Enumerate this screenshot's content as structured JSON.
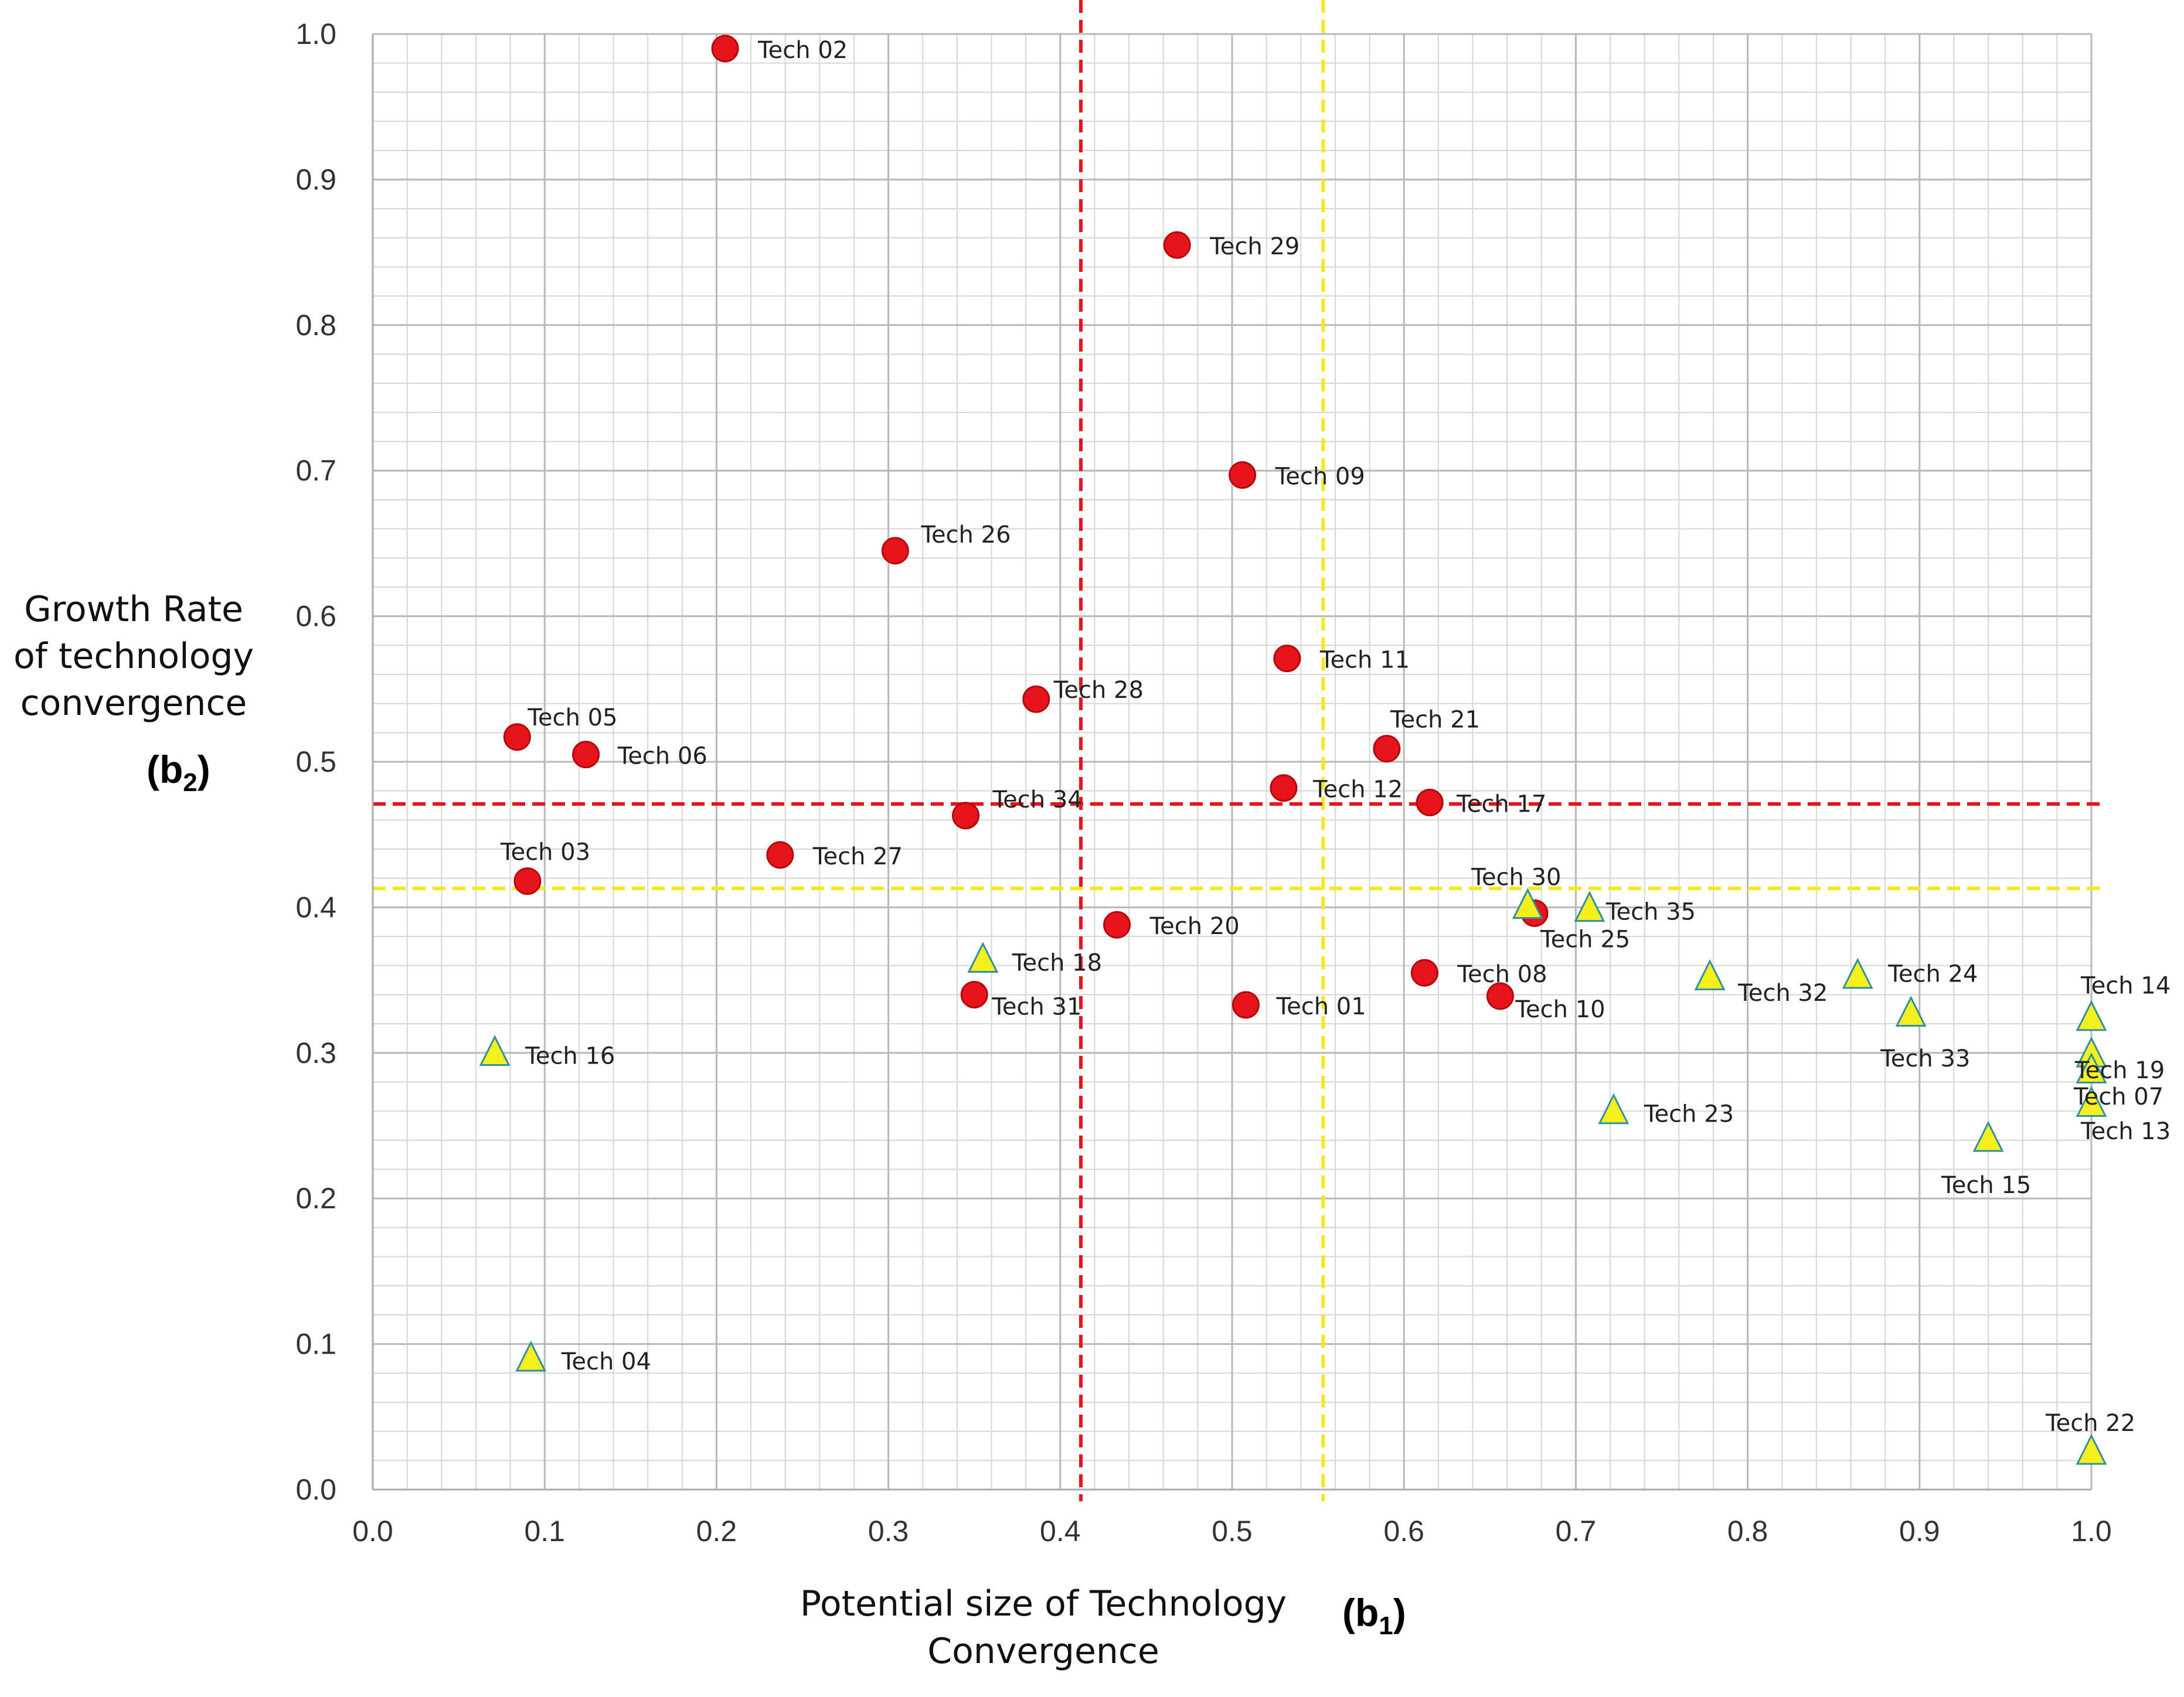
{
  "chart_data": {
    "type": "scatter",
    "title": "",
    "xlabel_lines": [
      "Potential size of  Technology",
      "Convergence"
    ],
    "xlabel_symbol": "(b1)",
    "ylabel_lines": [
      "Growth Rate",
      "of technology",
      "convergence"
    ],
    "ylabel_symbol": "(b2)",
    "xlim": [
      0.0,
      1.0
    ],
    "ylim": [
      0.0,
      1.0
    ],
    "x_ticks": [
      "0.0",
      "0.1",
      "0.2",
      "0.3",
      "0.4",
      "0.5",
      "0.6",
      "0.7",
      "0.8",
      "0.9",
      "1.0"
    ],
    "y_ticks": [
      "0.0",
      "0.1",
      "0.2",
      "0.3",
      "0.4",
      "0.5",
      "0.6",
      "0.7",
      "0.8",
      "0.9",
      "1.0"
    ],
    "grid": true,
    "reference_lines": [
      {
        "orientation": "vertical",
        "value": 0.412,
        "color": "#e8141b"
      },
      {
        "orientation": "vertical",
        "value": 0.553,
        "color": "#f5e81c"
      },
      {
        "orientation": "horizontal",
        "value": 0.471,
        "color": "#e8141b"
      },
      {
        "orientation": "horizontal",
        "value": 0.413,
        "color": "#f5e81c"
      }
    ],
    "series": [
      {
        "name": "circle",
        "marker": "circle",
        "color": "#e8141b",
        "points": [
          {
            "label": "Tech 02",
            "x": 0.205,
            "y": 0.99
          },
          {
            "label": "Tech 29",
            "x": 0.468,
            "y": 0.855
          },
          {
            "label": "Tech 09",
            "x": 0.506,
            "y": 0.697
          },
          {
            "label": "Tech 26",
            "x": 0.304,
            "y": 0.645
          },
          {
            "label": "Tech 11",
            "x": 0.532,
            "y": 0.571
          },
          {
            "label": "Tech 28",
            "x": 0.386,
            "y": 0.543
          },
          {
            "label": "Tech 05",
            "x": 0.084,
            "y": 0.517
          },
          {
            "label": "Tech 06",
            "x": 0.124,
            "y": 0.505
          },
          {
            "label": "Tech 21",
            "x": 0.59,
            "y": 0.509
          },
          {
            "label": "Tech 12",
            "x": 0.53,
            "y": 0.482
          },
          {
            "label": "Tech 17",
            "x": 0.615,
            "y": 0.472
          },
          {
            "label": "Tech 34",
            "x": 0.345,
            "y": 0.463
          },
          {
            "label": "Tech 27",
            "x": 0.237,
            "y": 0.436
          },
          {
            "label": "Tech 03",
            "x": 0.09,
            "y": 0.418
          },
          {
            "label": "Tech 25",
            "x": 0.676,
            "y": 0.396
          },
          {
            "label": "Tech 20",
            "x": 0.433,
            "y": 0.388
          },
          {
            "label": "Tech 08",
            "x": 0.612,
            "y": 0.355
          },
          {
            "label": "Tech 10",
            "x": 0.656,
            "y": 0.339
          },
          {
            "label": "Tech 31",
            "x": 0.35,
            "y": 0.34
          },
          {
            "label": "Tech 01",
            "x": 0.508,
            "y": 0.333
          }
        ]
      },
      {
        "name": "triangle",
        "marker": "triangle",
        "color": "#f5ef1b",
        "points": [
          {
            "label": "Tech 30",
            "x": 0.672,
            "y": 0.4
          },
          {
            "label": "Tech 35",
            "x": 0.708,
            "y": 0.398
          },
          {
            "label": "Tech 18",
            "x": 0.355,
            "y": 0.363
          },
          {
            "label": "Tech 32",
            "x": 0.778,
            "y": 0.351
          },
          {
            "label": "Tech 24",
            "x": 0.864,
            "y": 0.352
          },
          {
            "label": "Tech 33",
            "x": 0.895,
            "y": 0.326
          },
          {
            "label": "Tech 14",
            "x": 1.0,
            "y": 0.323
          },
          {
            "label": "Tech 19",
            "x": 1.0,
            "y": 0.298
          },
          {
            "label": "Tech 07",
            "x": 1.0,
            "y": 0.287
          },
          {
            "label": "Tech 13",
            "x": 1.0,
            "y": 0.264
          },
          {
            "label": "Tech 16",
            "x": 0.071,
            "y": 0.299
          },
          {
            "label": "Tech 23",
            "x": 0.722,
            "y": 0.259
          },
          {
            "label": "Tech 15",
            "x": 0.94,
            "y": 0.24
          },
          {
            "label": "Tech 04",
            "x": 0.092,
            "y": 0.089
          },
          {
            "label": "Tech 22",
            "x": 1.0,
            "y": 0.025
          }
        ]
      }
    ]
  }
}
